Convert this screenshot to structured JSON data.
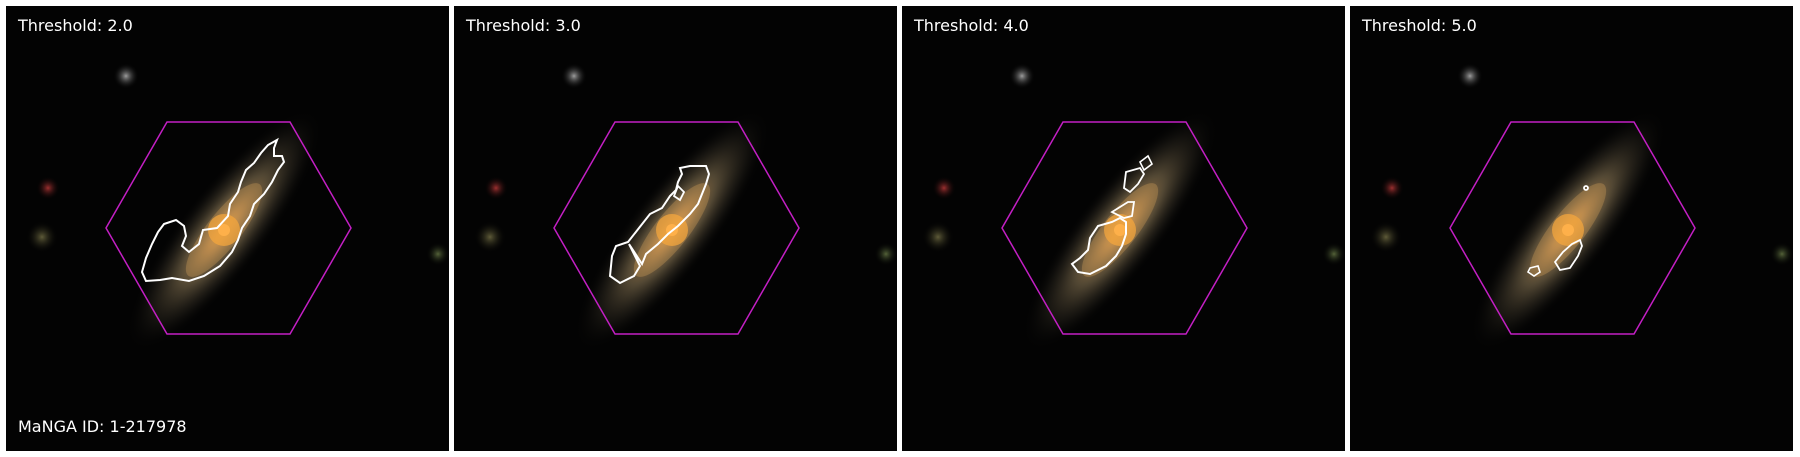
{
  "manga_id_label": "MaNGA ID: 1-217978",
  "panels": [
    {
      "threshold_label": "Threshold: 2.0"
    },
    {
      "threshold_label": "Threshold: 3.0"
    },
    {
      "threshold_label": "Threshold: 4.0"
    },
    {
      "threshold_label": "Threshold: 5.0"
    }
  ],
  "colors": {
    "background": "#030303",
    "hexagon": "#c31fc4",
    "contour": "#ffffff",
    "galaxy_core": "#f1a23a",
    "galaxy_halo": "#b8a27b"
  }
}
